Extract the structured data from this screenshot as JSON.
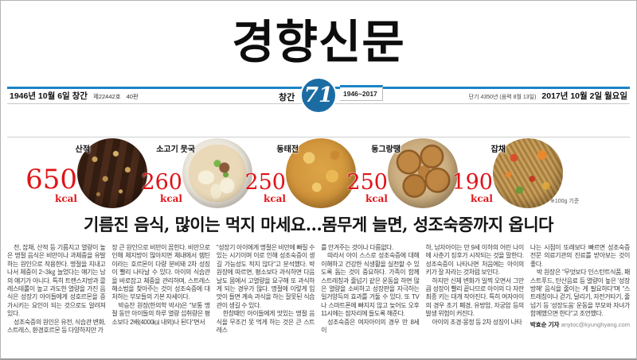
{
  "masthead": {
    "title": "경향신문"
  },
  "dateline": {
    "founded": "1946년 10월 6일 창간",
    "issue_no": "제22442호",
    "edition": "40판",
    "anniversary_label": "창간",
    "anniversary_years": "71",
    "anniversary_range": "1946~2017",
    "lunar_date": "단기 4350년 (음력 8월 13일)",
    "date": "2017년 10월 2일 월요일"
  },
  "foods": {
    "items": [
      {
        "name": "산적",
        "value": "650",
        "unit": "kcal"
      },
      {
        "name": "소고기 뭇국",
        "value": "260",
        "unit": "kcal"
      },
      {
        "name": "동태전",
        "value": "250",
        "unit": "kcal"
      },
      {
        "name": "동그랑땡",
        "value": "250",
        "unit": "kcal"
      },
      {
        "name": "잡채",
        "value": "190",
        "unit": "kcal"
      }
    ],
    "note": "※100g 기준"
  },
  "article": {
    "headline": "기름진 음식, 많이는 먹지 마세요…몸무게 늘면, 성조숙증까지 옵니다",
    "columns": [
      [
        "전, 잡채, 산적 등 기름지고 열량이 높은 명절 음식은 비만이나 과체중을 유발하는 원인으로 작용한다. 명절을 지내고 나서 체중이 2~3㎏ 늘었다는 얘기는 남의 얘기가 아니다. 특히 트랜스지방과 콜레스테롤이 높고 과도한 열량을 가진 음식은 성장기 아이들에게 성호르몬을 증가시키는 요인이 되는 것으로도 알려져 있다.",
        "성조숙증의 원인은 유전, 식습관 변화, 스트레스, 환경호르몬 등 다양하지만 가"
      ],
      [
        "장 큰 원인으로 비만이 꼽힌다. 비만으로 인해 체지방이 많아지면 체내에서 렙틴이라는 호르몬이 다량 분비돼 2차 성징이 빨리 나타날 수 있다. 아이의 식습관을 바로잡고 체중을 관리하며, 스트레스 해소법을 찾아주는 것이 성조숙증에 대처하는 부모들의 기본 자세이다.",
        "박승찬 원장(한의학 박사)은 \"보통 명절 동안 아이들의 하루 열량 섭취량은 평소보다 2배(4000㎉ 내외)나 된다\"면서"
      ],
      [
        "\"성장기 아이에게 명절은 비만에 빠질 수 있는 시기이며 이로 인해 성조숙증이 생길 가능성도 적지 않다\"고 분석했다. 박 원장에 따르면, 평소보다 과식하면 다음날도 몸에서 고열량을 요구해 또 과식하게 되는 경우가 많다. 명절에 이렇게 입맛이 들면 계속 과식을 하는 잘못된 식습관이 생길 수 있다.",
        "한창때인 아이들에게 맛있는 명절 음식을 무조건 못 먹게 하는 것은 큰 스트레스"
      ],
      [
        "를 안겨주는 것이나 다름없다.",
        "따라서 아이 스스로 성조숙증에 대해 이해하고 건강한 식생활을 실천할 수 있도록 돕는 것이 중요하다. 가족이 함께 스트레칭과 줄넘기 같은 운동을 하면 많은 열량을 소비하고 성장판을 자극하는 일거양득의 효과를 거둘 수 있다. 또 TV나 스마트폰에 빠지지 않고 늦어도 오후 11시에는 잠자리에 들도록 해준다.",
        "성조숙증은 여자아이의 경우 만 8세 이"
      ],
      [
        "하, 남자아이는 만 9세 이하의 어린 나이에 사춘기 징후가 시작되는 것을 말한다. 성조숙증이 나타나면 처음에는 아이의 키가 잘 자라는 것처럼 보인다.",
        "하지만 신체 변화가 일찍 오면서 그만큼 성장이 빨리 끝나므로 아이의 다 자란 최종 키는 대개 작아진다. 특히 여자아이의 경우 조기 폐경, 유방암, 자궁암 등의 발생 위험이 커진다.",
        "아이의 초경·몽정 등 2차 성징이 나타"
      ],
      [
        "나는 시점이 또래보다 빠르면 성조숙증 전문 의료기관의 진료를 받아보는 것이 좋다.",
        "박 원장은 \"무엇보다 인스턴트식품, 패스트푸드, 탄산음료 등 열량이 높은 '성장방해' 음식을 줄이는 게 필요하다\"며 \"스트레칭이나 걷기, 달리기, 자전거타기, 줄넘기 등 '성장도움' 운동을 부모와 자녀가 함께했으면 한다\"고 조언했다."
      ]
    ],
    "byline": {
      "reporter": "박효순 기자",
      "email": "anytoc@kyunghyang.com"
    }
  },
  "colors": {
    "accent_blue": "#1b84c6",
    "badge_circle_blue": "#1c6ca4",
    "kcal_red": "#df1418"
  }
}
